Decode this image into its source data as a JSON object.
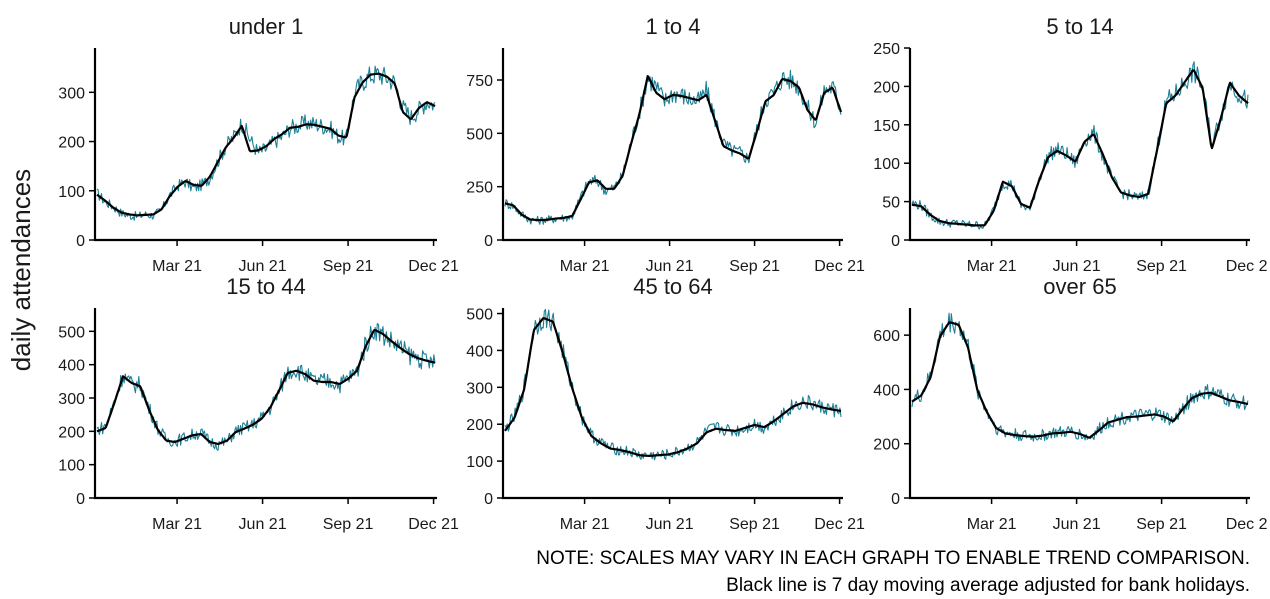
{
  "ylabel": "daily attendances",
  "notes": {
    "line1": "NOTE: SCALES MAY VARY IN EACH GRAPH TO ENABLE TREND COMPARISON.",
    "line2": "Black line is 7 day moving average adjusted for bank holidays."
  },
  "colors": {
    "daily": "#1b7f95",
    "average": "#000000",
    "axis": "#000000",
    "text": "#1a1a1a"
  },
  "chart_data": [
    {
      "type": "line",
      "title": "under 1",
      "x_range": [
        "2020-12-10",
        "2021-12-09"
      ],
      "ylim": [
        0,
        390
      ],
      "yticks": [
        0,
        100,
        200,
        300
      ],
      "xticks": [
        "Mar 21",
        "Jun 21",
        "Sep 21",
        "Dec 21"
      ],
      "series": [
        {
          "values": [
            95,
            78,
            68,
            55,
            50,
            48,
            52,
            50,
            60,
            90,
            110,
            118,
            105,
            112,
            125,
            160,
            190,
            210,
            238,
            205,
            178,
            185,
            200,
            210,
            228,
            232,
            238,
            236,
            232,
            226,
            210,
            205,
            300,
            322,
            335,
            338,
            330,
            320,
            270,
            250,
            265,
            282,
            275
          ]
        },
        {
          "values": [
            92,
            80,
            66,
            56,
            52,
            50,
            51,
            52,
            62,
            88,
            108,
            120,
            112,
            110,
            128,
            158,
            188,
            208,
            232,
            180,
            182,
            190,
            205,
            215,
            228,
            230,
            235,
            234,
            230,
            226,
            212,
            208,
            290,
            320,
            336,
            338,
            332,
            318,
            260,
            245,
            268,
            280,
            272
          ]
        }
      ]
    },
    {
      "type": "line",
      "title": "1 to 4",
      "x_range": [
        "2020-12-10",
        "2021-12-09"
      ],
      "ylim": [
        0,
        900
      ],
      "yticks": [
        0,
        250,
        500,
        750
      ],
      "xticks": [
        "Mar 21",
        "Jun 21",
        "Sep 21",
        "Dec 21"
      ],
      "series": [
        {
          "values": [
            175,
            160,
            120,
            95,
            92,
            95,
            100,
            105,
            110,
            200,
            275,
            278,
            230,
            245,
            300,
            460,
            600,
            760,
            720,
            650,
            690,
            680,
            660,
            650,
            700,
            570,
            450,
            420,
            410,
            380,
            520,
            660,
            690,
            760,
            750,
            720,
            620,
            550,
            700,
            720,
            610
          ]
        },
        {
          "values": [
            172,
            162,
            118,
            96,
            93,
            95,
            100,
            104,
            112,
            190,
            270,
            280,
            240,
            240,
            300,
            450,
            590,
            770,
            690,
            660,
            680,
            675,
            665,
            655,
            680,
            560,
            440,
            420,
            405,
            380,
            510,
            650,
            680,
            755,
            745,
            715,
            610,
            560,
            690,
            715,
            600
          ]
        }
      ]
    },
    {
      "type": "line",
      "title": "5 to 14",
      "x_range": [
        "2020-12-10",
        "2021-12-02"
      ],
      "ylim": [
        0,
        250
      ],
      "yticks": [
        0,
        50,
        100,
        150,
        200,
        250
      ],
      "xticks": [
        "Mar 21",
        "Jun 21",
        "Sep 21",
        "Dec 2"
      ],
      "series": [
        {
          "values": [
            48,
            45,
            32,
            24,
            22,
            22,
            20,
            20,
            18,
            40,
            75,
            72,
            45,
            40,
            80,
            110,
            118,
            112,
            100,
            130,
            140,
            110,
            80,
            62,
            58,
            55,
            60,
            120,
            180,
            190,
            205,
            220,
            200,
            125,
            160,
            205,
            190,
            180
          ]
        },
        {
          "values": [
            46,
            44,
            33,
            25,
            22,
            21,
            20,
            19,
            19,
            38,
            76,
            70,
            47,
            42,
            78,
            108,
            116,
            110,
            102,
            128,
            138,
            112,
            82,
            62,
            58,
            56,
            60,
            118,
            178,
            188,
            205,
            222,
            198,
            118,
            158,
            205,
            188,
            178
          ]
        }
      ]
    },
    {
      "type": "line",
      "title": "15 to 44",
      "x_range": [
        "2020-12-10",
        "2021-12-09"
      ],
      "ylim": [
        0,
        570
      ],
      "yticks": [
        0,
        100,
        200,
        300,
        400,
        500
      ],
      "xticks": [
        "Mar 21",
        "Jun 21",
        "Sep 21",
        "Dec 21"
      ],
      "series": [
        {
          "values": [
            205,
            215,
            290,
            370,
            340,
            340,
            270,
            210,
            175,
            170,
            180,
            190,
            195,
            170,
            160,
            170,
            200,
            210,
            220,
            240,
            270,
            320,
            380,
            385,
            370,
            350,
            350,
            350,
            340,
            360,
            380,
            460,
            510,
            490,
            470,
            450,
            430,
            420,
            410,
            405
          ]
        },
        {
          "values": [
            200,
            210,
            285,
            365,
            345,
            335,
            265,
            205,
            172,
            168,
            178,
            188,
            192,
            168,
            162,
            172,
            198,
            208,
            220,
            238,
            272,
            322,
            375,
            382,
            372,
            352,
            348,
            348,
            342,
            358,
            382,
            455,
            505,
            492,
            470,
            450,
            432,
            420,
            412,
            406
          ]
        }
      ]
    },
    {
      "type": "line",
      "title": "45 to 64",
      "x_range": [
        "2020-12-10",
        "2021-12-09"
      ],
      "ylim": [
        0,
        515
      ],
      "yticks": [
        0,
        100,
        200,
        300,
        400,
        500
      ],
      "xticks": [
        "Mar 21",
        "Jun 21",
        "Sep 21",
        "Dec 21"
      ],
      "series": [
        {
          "values": [
            185,
            220,
            300,
            460,
            490,
            480,
            400,
            300,
            220,
            170,
            150,
            135,
            130,
            125,
            115,
            115,
            115,
            118,
            125,
            135,
            150,
            180,
            190,
            185,
            180,
            190,
            200,
            190,
            210,
            230,
            250,
            260,
            255,
            245,
            240,
            235
          ]
        },
        {
          "values": [
            182,
            218,
            295,
            455,
            488,
            478,
            395,
            298,
            218,
            168,
            148,
            134,
            130,
            124,
            116,
            114,
            116,
            118,
            124,
            134,
            148,
            178,
            188,
            184,
            182,
            190,
            198,
            192,
            208,
            228,
            248,
            258,
            254,
            246,
            240,
            236
          ]
        }
      ]
    },
    {
      "type": "line",
      "title": "over 65",
      "x_range": [
        "2020-12-10",
        "2021-12-02"
      ],
      "ylim": [
        0,
        700
      ],
      "yticks": [
        0,
        200,
        400,
        600
      ],
      "xticks": [
        "Mar 21",
        "Jun 21",
        "Sep 21",
        "Dec 2"
      ],
      "series": [
        {
          "values": [
            360,
            380,
            450,
            600,
            650,
            640,
            560,
            400,
            320,
            260,
            240,
            235,
            230,
            225,
            230,
            240,
            240,
            245,
            235,
            220,
            250,
            280,
            290,
            300,
            300,
            305,
            310,
            300,
            280,
            330,
            370,
            385,
            390,
            375,
            360,
            355,
            345
          ]
        },
        {
          "values": [
            355,
            378,
            445,
            595,
            648,
            638,
            555,
            398,
            318,
            258,
            238,
            232,
            228,
            226,
            230,
            238,
            240,
            244,
            236,
            222,
            248,
            278,
            288,
            298,
            300,
            304,
            308,
            300,
            282,
            328,
            368,
            384,
            388,
            374,
            360,
            354,
            346
          ]
        }
      ]
    }
  ]
}
